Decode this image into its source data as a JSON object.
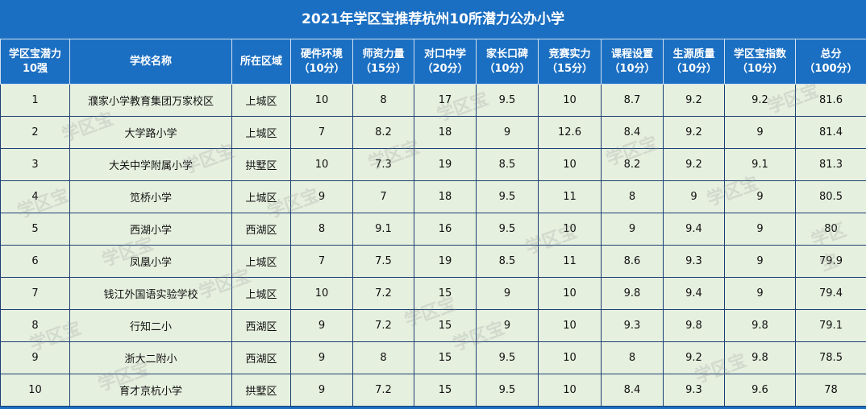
{
  "title": "2021年学区宝推荐杭州10所潜力公办小学",
  "watermark": "学区宝",
  "header": [
    [
      "学区宝潜力",
      "10强"
    ],
    [
      "学校名称"
    ],
    [
      "所在区域"
    ],
    [
      "硬件环境",
      "（10分）"
    ],
    [
      "师资力量",
      "（15分）"
    ],
    [
      "对口中学",
      "（20分）"
    ],
    [
      "家长口碑",
      "（10分）"
    ],
    [
      "竞赛实力",
      "（15分）"
    ],
    [
      "课程设置",
      "（10分）"
    ],
    [
      "生源质量",
      "（10分）"
    ],
    [
      "学区宝指数",
      "（10分）"
    ],
    [
      "总分",
      "（100分）"
    ]
  ],
  "rows": [
    [
      1,
      "濮家小学教育集团万家校区",
      "上城区",
      10,
      8,
      17,
      9.5,
      10,
      8.7,
      9.2,
      9.2,
      81.6
    ],
    [
      2,
      "大学路小学",
      "上城区",
      7,
      8.2,
      18,
      9,
      12.6,
      8.4,
      9.2,
      9,
      81.4
    ],
    [
      3,
      "大关中学附属小学",
      "拱墅区",
      10,
      7.3,
      19,
      8.5,
      10,
      8.2,
      9.2,
      9.1,
      81.3
    ],
    [
      4,
      "笕桥小学",
      "上城区",
      9,
      7,
      18,
      9.5,
      11,
      8,
      9,
      9,
      80.5
    ],
    [
      5,
      "西湖小学",
      "西湖区",
      8,
      9.1,
      16,
      9.5,
      10,
      9,
      9.4,
      9,
      80
    ],
    [
      6,
      "凤凰小学",
      "上城区",
      7,
      7.5,
      19,
      8.5,
      11,
      8.6,
      9.3,
      9,
      79.9
    ],
    [
      7,
      "钱江外国语实验学校",
      "上城区",
      10,
      7.2,
      15,
      9,
      10,
      9.8,
      9.4,
      9,
      79.4
    ],
    [
      8,
      "行知二小",
      "西湖区",
      9,
      7.2,
      15,
      9,
      10,
      9.3,
      9.8,
      9.8,
      79.1
    ],
    [
      9,
      "浙大二附小",
      "西湖区",
      9,
      8,
      15,
      9.5,
      10,
      8,
      9.2,
      9.8,
      78.5
    ],
    [
      10,
      "育才京杭小学",
      "拱墅区",
      9,
      7.2,
      15,
      9.5,
      10,
      8.4,
      9.3,
      9.6,
      78
    ]
  ]
}
